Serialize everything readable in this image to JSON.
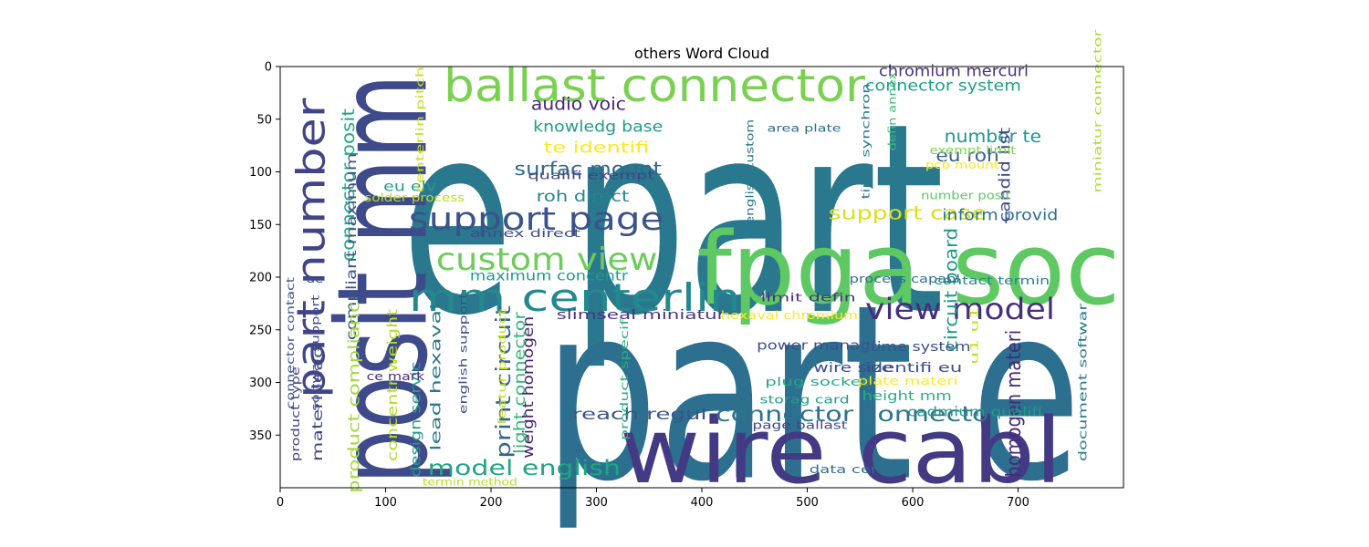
{
  "chart_data": {
    "type": "wordcloud",
    "title": "others Word Cloud",
    "xlim": [
      0,
      800
    ],
    "ylim": [
      400,
      0
    ],
    "xticks": [
      0,
      100,
      200,
      300,
      400,
      500,
      600,
      700
    ],
    "yticks": [
      0,
      50,
      100,
      150,
      200,
      250,
      300,
      350
    ],
    "grid": false,
    "words": [
      {
        "text": "e part",
        "color": "#2a788e",
        "rot": 0
      },
      {
        "text": "part e",
        "color": "#2c6f8e",
        "rot": 0
      },
      {
        "text": "posit mm",
        "color": "#3e4a89",
        "rot": 90
      },
      {
        "text": "fpga soc",
        "color": "#5ec962",
        "rot": 0
      },
      {
        "text": "wire cabl",
        "color": "#443983",
        "rot": 0
      },
      {
        "text": "ballast connector",
        "color": "#7ad151",
        "rot": 0
      },
      {
        "text": "part number",
        "color": "#414487",
        "rot": 90
      },
      {
        "text": "mm centerlin",
        "color": "#23898e",
        "rot": 0
      },
      {
        "text": "support page",
        "color": "#3b528b",
        "rot": 0
      },
      {
        "text": "custom view",
        "color": "#6ccd5a",
        "rot": 0
      },
      {
        "text": "view model",
        "color": "#472d7b",
        "rot": 0
      },
      {
        "text": "connector connector",
        "color": "#2c728e",
        "rot": 0
      },
      {
        "text": "model english",
        "color": "#21a585",
        "rot": 0
      },
      {
        "text": "connector posit",
        "color": "#22a884",
        "rot": 90
      },
      {
        "text": "homogen materi",
        "color": "#482878",
        "rot": 90
      },
      {
        "text": "support case",
        "color": "#d8e219",
        "rot": 0
      },
      {
        "text": "surfac mount",
        "color": "#31688e",
        "rot": 0
      },
      {
        "text": "print circuit",
        "color": "#31668e",
        "rot": 90
      },
      {
        "text": "circuit board",
        "color": "#1f9a8a",
        "rot": 90
      },
      {
        "text": "compliant maximum",
        "color": "#3b528b",
        "rot": 90
      },
      {
        "text": "product complianc",
        "color": "#a0da39",
        "rot": 90
      },
      {
        "text": "light connector",
        "color": "#35b779",
        "rot": 90
      },
      {
        "text": "audio voic",
        "color": "#482475",
        "rot": 0
      },
      {
        "text": "knowledg base",
        "color": "#1f9e89",
        "rot": 0
      },
      {
        "text": "te identifi",
        "color": "#fde725",
        "rot": 0
      },
      {
        "text": "roh direct",
        "color": "#25858e",
        "rot": 0
      },
      {
        "text": "number te",
        "color": "#1f968b",
        "rot": 0
      },
      {
        "text": "eu roh",
        "color": "#355f8d",
        "rot": 0
      },
      {
        "text": "inform provid",
        "color": "#2d708e",
        "rot": 0
      },
      {
        "text": "candid list",
        "color": "#3e4989",
        "rot": 90
      },
      {
        "text": "chromium mercuri",
        "color": "#46327e",
        "rot": 0
      },
      {
        "text": "connector system",
        "color": "#1fa088",
        "rot": 0
      },
      {
        "text": "reach regul",
        "color": "#39568c",
        "rot": 0
      },
      {
        "text": "weight homogen",
        "color": "#481f70",
        "rot": 90
      },
      {
        "text": "concentr weight",
        "color": "#b5de2b",
        "rot": 90
      },
      {
        "text": "design servic",
        "color": "#1f9e89",
        "rot": 90
      },
      {
        "text": "lead hexaval",
        "color": "#2a788e",
        "rot": 90
      },
      {
        "text": "materi lead",
        "color": "#3f4889",
        "rot": 90
      },
      {
        "text": "maximum concentr",
        "color": "#1f9a8a",
        "rot": 0
      },
      {
        "text": "eu elv",
        "color": "#1f9f88",
        "rot": 0
      },
      {
        "text": "qualifi exempt",
        "color": "#404387",
        "rot": 0
      },
      {
        "text": "solder process",
        "color": "#b8de29",
        "rot": 0
      },
      {
        "text": "annex direct",
        "color": "#3e4c8a",
        "rot": 0
      },
      {
        "text": "slimseal miniatur",
        "color": "#453781",
        "rot": 0
      },
      {
        "text": "limit defin",
        "color": "#46337f",
        "rot": 0
      },
      {
        "text": "hexaval chromium",
        "color": "#fde725",
        "rot": 0
      },
      {
        "text": "process capabl",
        "color": "#2e6e8e",
        "rot": 0
      },
      {
        "text": "contact termin",
        "color": "#25838e",
        "rot": 0
      },
      {
        "text": "power manag",
        "color": "#3b518b",
        "rot": 0
      },
      {
        "text": "time system",
        "color": "#3b528b",
        "rot": 0
      },
      {
        "text": "wire size",
        "color": "#3e4a89",
        "rot": 0
      },
      {
        "text": "identifi eu",
        "color": "#3b528b",
        "rot": 0
      },
      {
        "text": "plug socket",
        "color": "#23a983",
        "rot": 0
      },
      {
        "text": "plate materi",
        "color": "#fde725",
        "rot": 0
      },
      {
        "text": "storag card",
        "color": "#1f9e89",
        "rot": 0
      },
      {
        "text": "height mm",
        "color": "#29af7f",
        "rot": 0
      },
      {
        "text": "page ballast",
        "color": "#3f4788",
        "rot": 0
      },
      {
        "text": "cadmium qualifi",
        "color": "#1f9a8a",
        "rot": 0
      },
      {
        "text": "data center",
        "color": "#2e6f8e",
        "rot": 0
      },
      {
        "text": "termin method",
        "color": "#b5de2b",
        "rot": 0
      },
      {
        "text": "area plate",
        "color": "#2f6c8e",
        "rot": 0
      },
      {
        "text": "exempt limit",
        "color": "#7fd34e",
        "rot": 0
      },
      {
        "text": "pcb mount",
        "color": "#fde725",
        "rot": 0
      },
      {
        "text": "number posit",
        "color": "#5cc863",
        "rot": 0
      },
      {
        "text": "ce mark",
        "color": "#472c7a",
        "rot": 0
      },
      {
        "text": "ae",
        "color": "#3e4c8a",
        "rot": 0
      },
      {
        "text": "u1 u1",
        "color": "#c2df23",
        "rot": 90
      },
      {
        "text": "centerlin pitch",
        "color": "#c8e020",
        "rot": 90
      },
      {
        "text": "english custom",
        "color": "#2b758e",
        "rot": 90
      },
      {
        "text": "time synchron",
        "color": "#2a788e",
        "rot": 90
      },
      {
        "text": "defin annex",
        "color": "#3aba76",
        "rot": 90
      },
      {
        "text": "miniatur connector",
        "color": "#addc30",
        "rot": 90
      },
      {
        "text": "document softwar",
        "color": "#2a788e",
        "rot": 90
      },
      {
        "text": "connector contact",
        "color": "#3b528b",
        "rot": 90
      },
      {
        "text": "product type",
        "color": "#414487",
        "rot": 90
      },
      {
        "text": "softwar support",
        "color": "#3e4989",
        "rot": 90
      },
      {
        "text": "english support",
        "color": "#3d4e8a",
        "rot": 90
      },
      {
        "text": "featur product",
        "color": "#c0df25",
        "rot": 90
      },
      {
        "text": "product specif",
        "color": "#29af7f",
        "rot": 90
      }
    ]
  }
}
